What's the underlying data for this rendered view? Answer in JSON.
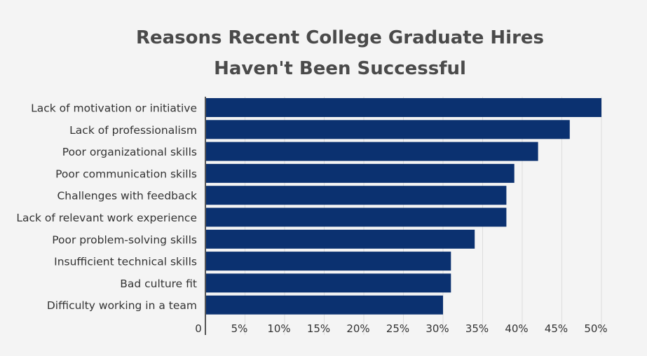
{
  "chart_data": {
    "type": "bar",
    "orientation": "horizontal",
    "title_lines": [
      "Reasons Recent College Graduate Hires",
      "Haven't Been Successful"
    ],
    "categories": [
      "Lack of motivation or initiative",
      "Lack of professionalism",
      "Poor organizational skills",
      "Poor communication skills",
      "Challenges with feedback",
      "Lack of relevant work experience",
      "Poor problem-solving skills",
      "Insufficient technical skills",
      "Bad culture fit",
      "Difficulty working in a team"
    ],
    "values": [
      50,
      46,
      42,
      39,
      38,
      38,
      34,
      31,
      31,
      30
    ],
    "x_ticks": [
      0,
      5,
      10,
      15,
      20,
      25,
      30,
      35,
      40,
      45,
      50
    ],
    "x_tick_labels": [
      "0",
      "5%",
      "10%",
      "15%",
      "20%",
      "25%",
      "30%",
      "35%",
      "40%",
      "45%",
      "50%"
    ],
    "xlim": [
      0,
      50
    ],
    "grid": true,
    "xlabel": "",
    "ylabel": "",
    "colors": {
      "bar": "#0b3170",
      "background": "#f4f4f4",
      "grid": "#dddddd",
      "axis": "#555555",
      "text": "#333333",
      "title": "#4a4a4a"
    }
  }
}
